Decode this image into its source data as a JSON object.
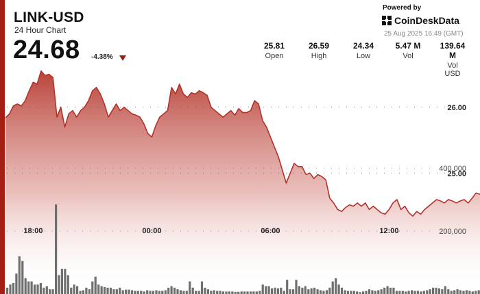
{
  "header": {
    "symbol": "LINK-USD",
    "subtitle": "24 Hour Chart",
    "price": "24.68",
    "change": "-4.38%",
    "powered_by": "Powered by",
    "brand": "CoinDeskData",
    "timestamp": "25 Aug 2025 16:49 (GMT)"
  },
  "stats": [
    {
      "value": "25.81",
      "label": "Open"
    },
    {
      "value": "26.59",
      "label": "High"
    },
    {
      "value": "24.34",
      "label": "Low"
    },
    {
      "value": "5.47 M",
      "label": "Vol"
    },
    {
      "value": "139.64 M",
      "label": "Vol USD"
    }
  ],
  "colors": {
    "accent": "#a52014",
    "line": "#b0322a",
    "volume": "#6e6e6e"
  },
  "chart_data": {
    "type": "area",
    "title": "LINK-USD",
    "x_ticks": [
      "18:00",
      "00:00",
      "06:00",
      "12:00"
    ],
    "x_tick_hours": [
      1.4,
      7.4,
      13.4,
      19.4
    ],
    "x_range_hours": [
      0,
      24
    ],
    "price_ticks": [
      "26.00",
      "25.00"
    ],
    "price_tick_values": [
      26.0,
      25.0
    ],
    "price_range": [
      24.05,
      26.9
    ],
    "volume_ticks": [
      "400,000",
      "200,000"
    ],
    "volume_tick_values": [
      400000,
      200000
    ],
    "volume_range": [
      0,
      500000
    ],
    "price_series": [
      [
        0.0,
        25.84
      ],
      [
        0.2,
        25.9
      ],
      [
        0.4,
        26.02
      ],
      [
        0.6,
        26.05
      ],
      [
        0.8,
        26.02
      ],
      [
        1.0,
        26.1
      ],
      [
        1.2,
        26.25
      ],
      [
        1.4,
        26.38
      ],
      [
        1.6,
        26.35
      ],
      [
        1.8,
        26.55
      ],
      [
        2.0,
        26.48
      ],
      [
        2.2,
        26.5
      ],
      [
        2.4,
        26.45
      ],
      [
        2.6,
        25.85
      ],
      [
        2.8,
        26.0
      ],
      [
        3.0,
        25.7
      ],
      [
        3.2,
        25.9
      ],
      [
        3.4,
        25.95
      ],
      [
        3.6,
        25.85
      ],
      [
        3.8,
        25.95
      ],
      [
        4.0,
        26.0
      ],
      [
        4.2,
        26.1
      ],
      [
        4.4,
        26.25
      ],
      [
        4.6,
        26.3
      ],
      [
        4.8,
        26.2
      ],
      [
        5.0,
        26.05
      ],
      [
        5.2,
        25.85
      ],
      [
        5.4,
        25.95
      ],
      [
        5.6,
        26.05
      ],
      [
        5.8,
        25.95
      ],
      [
        6.0,
        26.0
      ],
      [
        6.2,
        25.95
      ],
      [
        6.4,
        25.9
      ],
      [
        6.6,
        25.88
      ],
      [
        6.8,
        25.85
      ],
      [
        7.0,
        25.75
      ],
      [
        7.2,
        25.6
      ],
      [
        7.4,
        25.55
      ],
      [
        7.6,
        25.72
      ],
      [
        7.8,
        25.85
      ],
      [
        8.0,
        25.9
      ],
      [
        8.2,
        25.95
      ],
      [
        8.4,
        26.3
      ],
      [
        8.6,
        26.2
      ],
      [
        8.8,
        26.35
      ],
      [
        9.0,
        26.2
      ],
      [
        9.2,
        26.15
      ],
      [
        9.4,
        26.22
      ],
      [
        9.6,
        26.2
      ],
      [
        9.8,
        26.25
      ],
      [
        10.0,
        26.22
      ],
      [
        10.2,
        26.18
      ],
      [
        10.4,
        26.0
      ],
      [
        10.6,
        25.95
      ],
      [
        10.8,
        25.9
      ],
      [
        11.0,
        25.85
      ],
      [
        11.2,
        25.9
      ],
      [
        11.4,
        25.95
      ],
      [
        11.6,
        25.88
      ],
      [
        11.8,
        25.98
      ],
      [
        12.0,
        25.92
      ],
      [
        12.2,
        25.92
      ],
      [
        12.4,
        25.95
      ],
      [
        12.6,
        26.1
      ],
      [
        12.8,
        26.05
      ],
      [
        13.0,
        25.8
      ],
      [
        13.2,
        25.7
      ],
      [
        13.4,
        25.55
      ],
      [
        13.6,
        25.4
      ],
      [
        13.8,
        25.25
      ],
      [
        14.0,
        25.05
      ],
      [
        14.2,
        24.85
      ],
      [
        14.4,
        25.0
      ],
      [
        14.6,
        25.15
      ],
      [
        14.8,
        25.1
      ],
      [
        15.0,
        25.1
      ],
      [
        15.2,
        24.98
      ],
      [
        15.4,
        25.0
      ],
      [
        15.6,
        24.92
      ],
      [
        15.8,
        24.98
      ],
      [
        16.0,
        24.95
      ],
      [
        16.2,
        24.9
      ],
      [
        16.4,
        24.62
      ],
      [
        16.6,
        24.55
      ],
      [
        16.8,
        24.45
      ],
      [
        17.0,
        24.42
      ],
      [
        17.2,
        24.48
      ],
      [
        17.4,
        24.52
      ],
      [
        17.6,
        24.5
      ],
      [
        17.8,
        24.55
      ],
      [
        18.0,
        24.5
      ],
      [
        18.2,
        24.55
      ],
      [
        18.4,
        24.45
      ],
      [
        18.6,
        24.5
      ],
      [
        18.8,
        24.45
      ],
      [
        19.0,
        24.4
      ],
      [
        19.2,
        24.38
      ],
      [
        19.4,
        24.45
      ],
      [
        19.6,
        24.55
      ],
      [
        19.8,
        24.6
      ],
      [
        20.0,
        24.45
      ],
      [
        20.2,
        24.5
      ],
      [
        20.4,
        24.4
      ],
      [
        20.6,
        24.35
      ],
      [
        20.8,
        24.42
      ],
      [
        21.0,
        24.38
      ],
      [
        21.2,
        24.45
      ],
      [
        21.4,
        24.5
      ],
      [
        21.6,
        24.55
      ],
      [
        21.8,
        24.6
      ],
      [
        22.0,
        24.58
      ],
      [
        22.2,
        24.55
      ],
      [
        22.4,
        24.6
      ],
      [
        22.6,
        24.58
      ],
      [
        22.8,
        24.55
      ],
      [
        23.0,
        24.58
      ],
      [
        23.2,
        24.6
      ],
      [
        23.4,
        24.55
      ],
      [
        23.6,
        24.62
      ],
      [
        23.8,
        24.7
      ],
      [
        24.0,
        24.68
      ]
    ],
    "volume_values": [
      20000,
      30000,
      35000,
      65000,
      120000,
      105000,
      50000,
      40000,
      40000,
      30000,
      30000,
      35000,
      20000,
      25000,
      15000,
      15000,
      285000,
      60000,
      80000,
      80000,
      60000,
      20000,
      30000,
      25000,
      10000,
      12000,
      20000,
      15000,
      40000,
      55000,
      30000,
      25000,
      22000,
      20000,
      20000,
      15000,
      15000,
      20000,
      12000,
      14000,
      14000,
      12000,
      10000,
      10000,
      10000,
      8000,
      12000,
      10000,
      10000,
      12000,
      10000,
      10000,
      12000,
      20000,
      25000,
      20000,
      15000,
      12000,
      10000,
      10000,
      40000,
      20000,
      10000,
      10000,
      40000,
      20000,
      15000,
      10000,
      12000,
      10000,
      10000,
      8000,
      8000,
      8000,
      8000,
      7000,
      7000,
      8000,
      8000,
      8000,
      8000,
      8000,
      8000,
      10000,
      30000,
      25000,
      25000,
      18000,
      20000,
      18000,
      20000,
      10000,
      45000,
      15000,
      15000,
      45000,
      25000,
      20000,
      25000,
      15000,
      18000,
      20000,
      15000,
      12000,
      10000,
      12000,
      20000,
      40000,
      50000,
      30000,
      20000,
      12000,
      10000,
      10000,
      10000,
      8000,
      6000,
      8000,
      10000,
      15000,
      12000,
      10000,
      12000,
      15000,
      20000,
      25000,
      20000,
      20000,
      10000,
      10000,
      10000,
      8000,
      10000,
      12000,
      10000,
      10000,
      8000,
      10000,
      12000,
      15000,
      20000,
      20000,
      18000,
      15000,
      25000,
      15000,
      10000,
      12000,
      15000,
      12000,
      10000,
      12000,
      10000,
      8000,
      10000,
      12000
    ]
  }
}
